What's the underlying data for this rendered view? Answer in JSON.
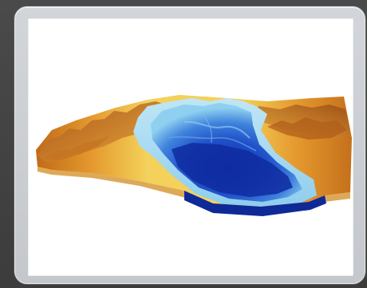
{
  "image": {
    "subject": "terrain-relief-3d-elevation-model",
    "colors": {
      "page_bg": "#404040",
      "frame": "#cbced2",
      "panel": "#ffffff",
      "deep_water": "#1b3fbf",
      "mid_water": "#4f8fe0",
      "shallow_water": "#9ad5f0",
      "lowland": "#f2e27a",
      "upland": "#e7a534",
      "ridge": "#b7651a"
    }
  }
}
